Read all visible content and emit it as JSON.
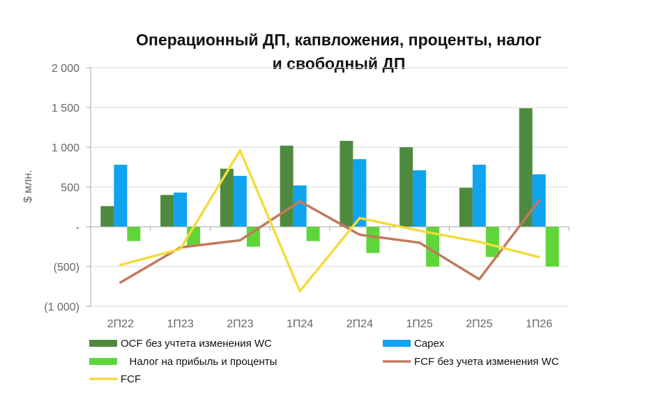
{
  "chart_data": {
    "type": "bar",
    "title_line1": "Операционный ДП, капвложения, проценты, налог",
    "title_line2": "и свободный ДП",
    "ylabel": "$ млн.",
    "xlabel": "",
    "ylim": [
      -1000,
      2000
    ],
    "yticks": [
      2000,
      1500,
      1000,
      500,
      0,
      -500,
      -1000
    ],
    "ytick_labels": [
      "2 000",
      "1 500",
      "1 000",
      "500",
      "-",
      "(500)",
      "(1 000)"
    ],
    "grid": true,
    "legend_position": "bottom",
    "categories": [
      "2П22",
      "1П23",
      "2П23",
      "1П24",
      "2П24",
      "1П25",
      "2П25",
      "1П26"
    ],
    "series": [
      {
        "name": "OCF без учтета изменения WC",
        "kind": "bar",
        "color": "#4e8a3e",
        "values": [
          260,
          400,
          730,
          1020,
          1080,
          1000,
          490,
          1490
        ]
      },
      {
        "name": "Capex",
        "kind": "bar",
        "color": "#10a3ef",
        "values": [
          780,
          430,
          640,
          520,
          850,
          710,
          780,
          660
        ]
      },
      {
        "name": "Налог на прибыль и проценты",
        "kind": "bar",
        "color": "#5ed63a",
        "values": [
          -180,
          -240,
          -250,
          -180,
          -330,
          -500,
          -380,
          -500
        ]
      },
      {
        "name": "FCF без учета изменения WC",
        "kind": "line",
        "color": "#c27a5a",
        "values": [
          -700,
          -260,
          -170,
          320,
          -100,
          -200,
          -660,
          330
        ]
      },
      {
        "name": "FCF",
        "kind": "line",
        "color": "#f2dc3c",
        "values": [
          -480,
          -280,
          960,
          -810,
          110,
          -50,
          -190,
          -380
        ]
      }
    ],
    "legend": [
      {
        "label": "OCF без учтета изменения WC",
        "marker": "bar",
        "color": "#4e8a3e"
      },
      {
        "label": "Capex",
        "marker": "bar",
        "color": "#10a3ef"
      },
      {
        "label": "   Налог на прибыль и проценты",
        "marker": "bar",
        "color": "#5ed63a"
      },
      {
        "label": "FCF без учета изменения WC",
        "marker": "line",
        "color": "#c27a5a"
      },
      {
        "label": "FCF",
        "marker": "line",
        "color": "#f2dc3c"
      }
    ]
  }
}
